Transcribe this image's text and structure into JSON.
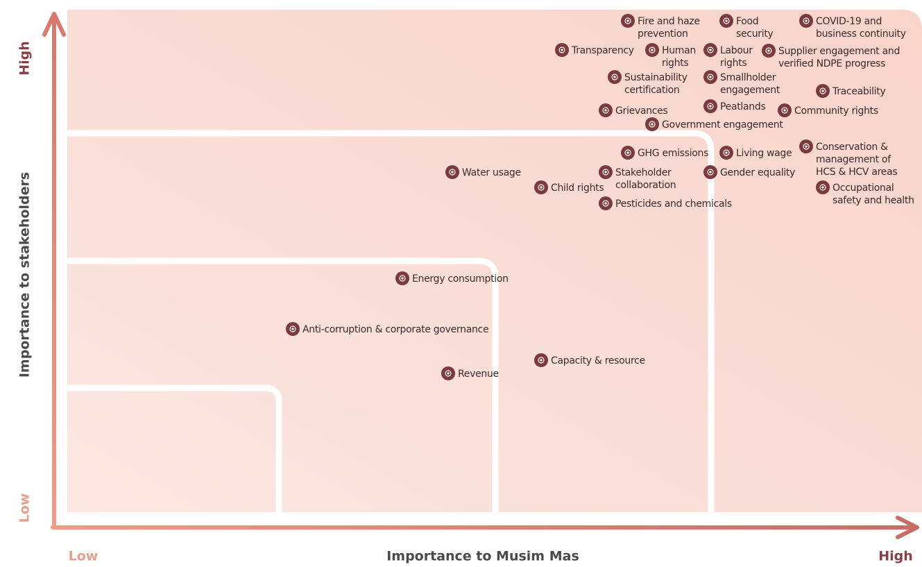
{
  "y_axis": {
    "high": "High",
    "title": "Importance to stakeholders",
    "low": "Low"
  },
  "x_axis": {
    "low": "Low",
    "title": "Importance to Musim Mas",
    "high": "High"
  },
  "nodes": [
    {
      "label": [
        "Fire and haze",
        "prevention"
      ]
    },
    {
      "label": [
        "Food",
        "security"
      ]
    },
    {
      "label": [
        "COVID-19 and",
        "business continuity"
      ]
    },
    {
      "label": [
        "Transparency"
      ]
    },
    {
      "label": [
        "Human",
        "rights"
      ]
    },
    {
      "label": [
        "Labour",
        "rights"
      ]
    },
    {
      "label": [
        "Supplier engagement and",
        "verified NDPE progress"
      ]
    },
    {
      "label": [
        "Sustainability",
        "certification"
      ]
    },
    {
      "label": [
        "Smallholder",
        "engagement"
      ]
    },
    {
      "label": [
        "Traceability"
      ]
    },
    {
      "label": [
        "Grievances"
      ]
    },
    {
      "label": [
        "Peatlands"
      ]
    },
    {
      "label": [
        "Community rights"
      ]
    },
    {
      "label": [
        "Government engagement"
      ]
    },
    {
      "label": [
        "GHG emissions"
      ]
    },
    {
      "label": [
        "Living wage"
      ]
    },
    {
      "label": [
        "Conservation &",
        "management of",
        "HCS & HCV areas"
      ]
    },
    {
      "label": [
        "Water usage"
      ]
    },
    {
      "label": [
        "Stakeholder",
        "collaboration"
      ]
    },
    {
      "label": [
        "Gender equality"
      ]
    },
    {
      "label": [
        "Child rights"
      ]
    },
    {
      "label": [
        "Occupational",
        "safety and health"
      ]
    },
    {
      "label": [
        "Pesticides and chemicals"
      ]
    },
    {
      "label": [
        "Energy consumption"
      ]
    },
    {
      "label": [
        "Anti-corruption & corporate governance"
      ]
    },
    {
      "label": [
        "Capacity & resource"
      ]
    },
    {
      "label": [
        "Revenue"
      ]
    }
  ]
}
